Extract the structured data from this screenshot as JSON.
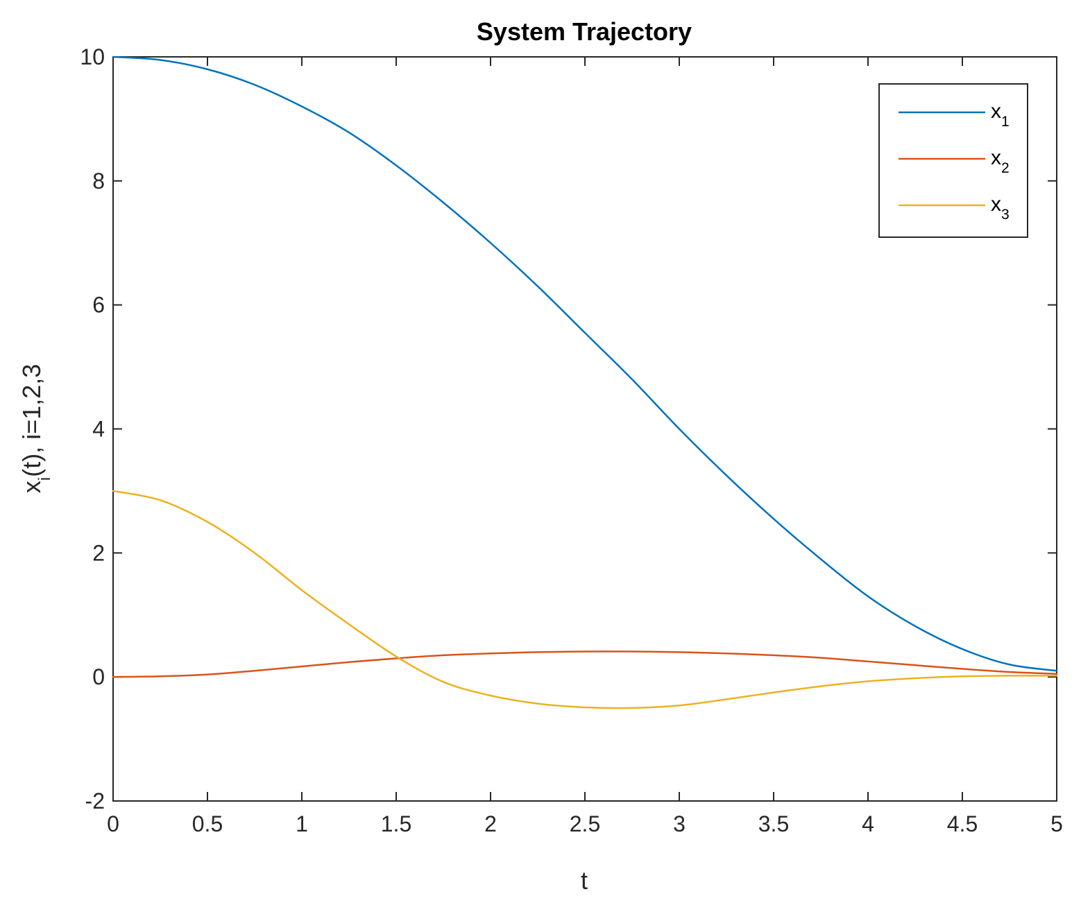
{
  "chart_data": {
    "type": "line",
    "title": "System Trajectory",
    "xlabel": "t",
    "ylabel": {
      "base": "x",
      "sub": "i",
      "rest": "(t), i=1,2,3"
    },
    "xlim": [
      0,
      5
    ],
    "ylim": [
      -2,
      10
    ],
    "xticks": [
      0,
      0.5,
      1,
      1.5,
      2,
      2.5,
      3,
      3.5,
      4,
      4.5,
      5
    ],
    "xtick_labels": [
      "0",
      "0.5",
      "1",
      "1.5",
      "2",
      "2.5",
      "3",
      "3.5",
      "4",
      "4.5",
      "5"
    ],
    "yticks": [
      -2,
      0,
      2,
      4,
      6,
      8,
      10
    ],
    "ytick_labels": [
      "-2",
      "0",
      "2",
      "4",
      "6",
      "8",
      "10"
    ],
    "grid": false,
    "legend_position": "top-right",
    "x": [
      0,
      0.25,
      0.5,
      0.75,
      1,
      1.25,
      1.5,
      1.75,
      2,
      2.25,
      2.5,
      2.75,
      3,
      3.25,
      3.5,
      3.75,
      4,
      4.25,
      4.5,
      4.75,
      5
    ],
    "series": [
      {
        "name": {
          "base": "x",
          "sub": "1"
        },
        "color": "#0072BD",
        "values": [
          10.0,
          9.95,
          9.8,
          9.55,
          9.2,
          8.78,
          8.25,
          7.65,
          7.0,
          6.3,
          5.55,
          4.8,
          4.0,
          3.25,
          2.55,
          1.9,
          1.3,
          0.82,
          0.45,
          0.2,
          0.1
        ]
      },
      {
        "name": {
          "base": "x",
          "sub": "2"
        },
        "color": "#D95319",
        "values": [
          0.0,
          0.01,
          0.04,
          0.1,
          0.17,
          0.24,
          0.3,
          0.35,
          0.38,
          0.4,
          0.41,
          0.41,
          0.4,
          0.38,
          0.35,
          0.31,
          0.25,
          0.19,
          0.13,
          0.08,
          0.05
        ]
      },
      {
        "name": {
          "base": "x",
          "sub": "3"
        },
        "color": "#EDB120",
        "values": [
          3.0,
          2.85,
          2.5,
          2.0,
          1.4,
          0.85,
          0.33,
          -0.08,
          -0.3,
          -0.43,
          -0.49,
          -0.5,
          -0.46,
          -0.36,
          -0.25,
          -0.15,
          -0.07,
          -0.02,
          0.01,
          0.02,
          0.02
        ]
      }
    ]
  }
}
